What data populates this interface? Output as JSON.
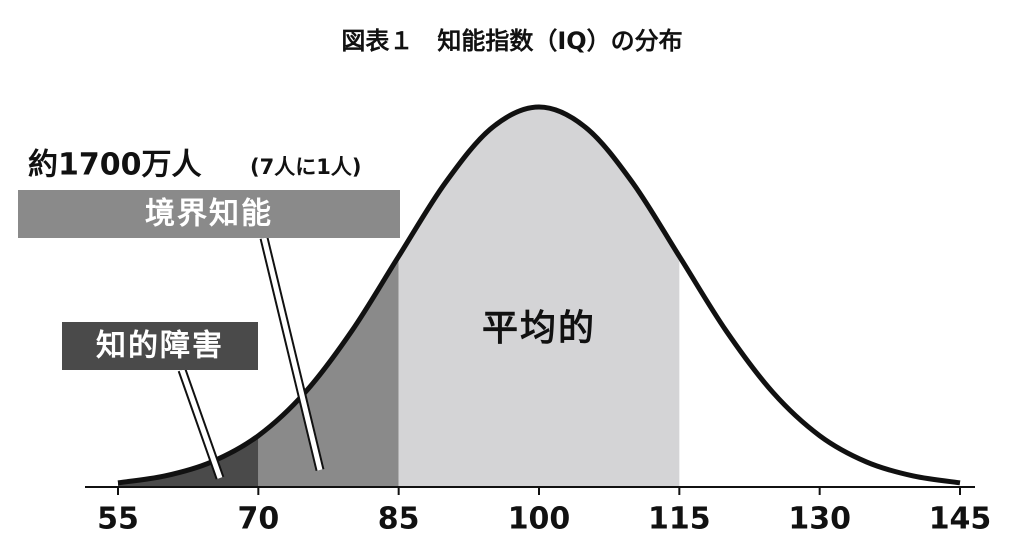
{
  "chart_data": {
    "type": "normal-curve",
    "title": "図表１　知能指数（IQ）の分布",
    "x": [
      55,
      60,
      65,
      70,
      75,
      80,
      85,
      90,
      95,
      100,
      105,
      110,
      115,
      120,
      125,
      130,
      135,
      140,
      145
    ],
    "values": [
      1.1,
      2.9,
      6.6,
      13.5,
      24.9,
      41.1,
      60.7,
      80.1,
      94.6,
      100,
      94.6,
      80.1,
      60.7,
      41.1,
      24.9,
      13.5,
      6.6,
      2.9,
      1.1
    ],
    "color": "#111111",
    "xlim": [
      55,
      145
    ],
    "ylim": [
      0,
      100
    ],
    "xticks": [
      55,
      70,
      85,
      100,
      115,
      130,
      145
    ],
    "regions": [
      {
        "from": 55,
        "to": 70,
        "color": "#4a4a4a",
        "label": "知的障害"
      },
      {
        "from": 70,
        "to": 85,
        "color": "#8a8a8a",
        "label": "境界知能"
      },
      {
        "from": 85,
        "to": 115,
        "color": "#d4d4d6",
        "label": "平均的"
      }
    ],
    "annotation": {
      "main": "約1700万人",
      "sub": "(7人に1人)"
    }
  }
}
